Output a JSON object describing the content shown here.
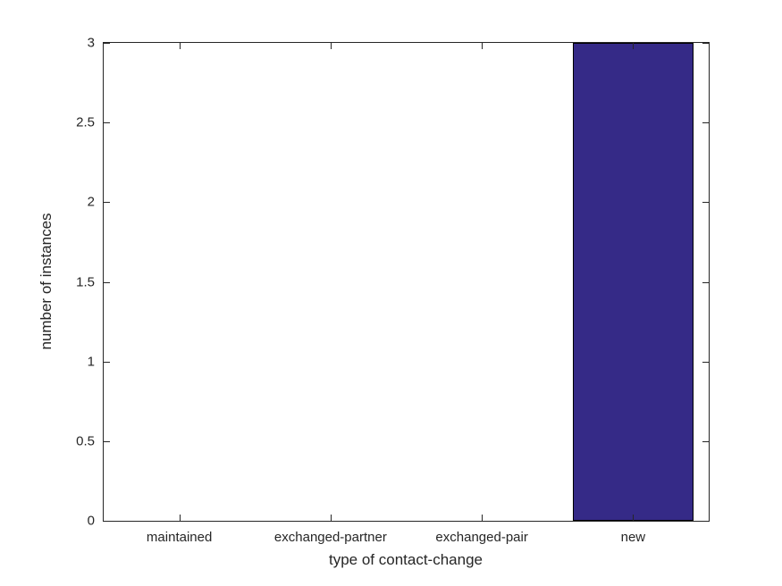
{
  "chart_data": {
    "type": "bar",
    "title": "",
    "xlabel": "type of contact-change",
    "ylabel": "number of instances",
    "categories": [
      "maintained",
      "exchanged-partner",
      "exchanged-pair",
      "new"
    ],
    "values": [
      0,
      0,
      0,
      3
    ],
    "ylim": [
      0,
      3
    ],
    "yticks": [
      0,
      0.5,
      1,
      1.5,
      2,
      2.5,
      3
    ],
    "ytick_labels": [
      "0",
      "0.5",
      "1",
      "1.5",
      "2",
      "2.5",
      "3"
    ],
    "bar_width_fraction": 0.8,
    "bar_color": "#352A87",
    "bar_edge_color": "#000000",
    "axis_color": "#262626",
    "grid": false,
    "legend": null
  }
}
